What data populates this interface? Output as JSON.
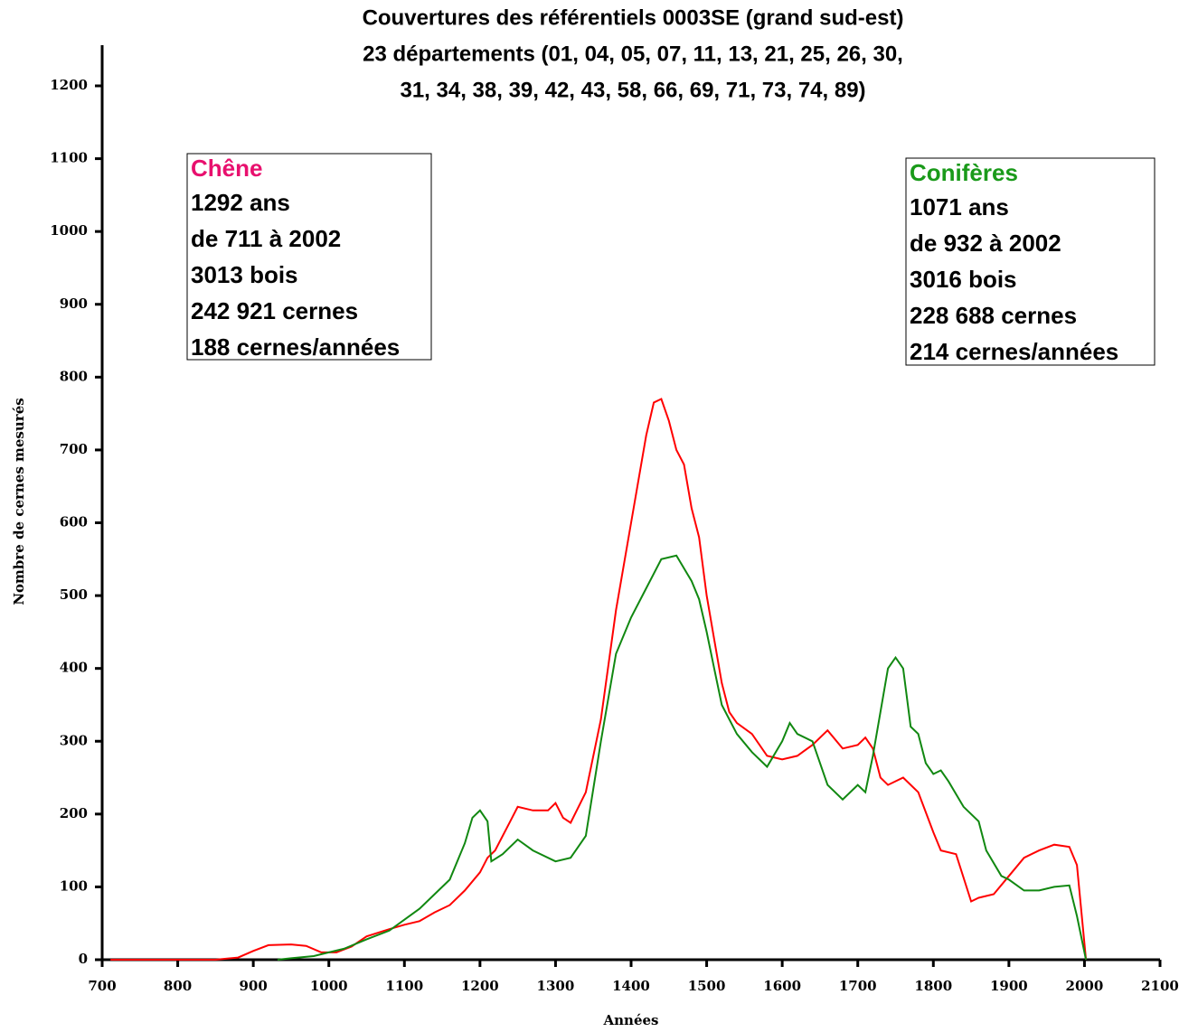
{
  "chart_data": {
    "type": "line",
    "title": [
      "Couvertures des référentiels 0003SE (grand sud-est)",
      "23 départements (01, 04, 05, 07, 11, 13, 21, 25, 26, 30,",
      "31, 34, 38, 39, 42, 43, 58, 66, 69, 71, 73, 74, 89)"
    ],
    "xlabel": "Années",
    "ylabel": "Nombre de cernes mesurés",
    "xlim": [
      700,
      2100
    ],
    "xticks": [
      700,
      800,
      900,
      1000,
      1100,
      1200,
      1300,
      1400,
      1500,
      1600,
      1700,
      1800,
      1900,
      2000,
      2100
    ],
    "ylim": [
      0,
      1200
    ],
    "yticks": [
      0,
      100,
      200,
      300,
      400,
      500,
      600,
      700,
      800,
      900,
      1000,
      1100,
      1200
    ],
    "series": [
      {
        "name": "Chêne",
        "color": "#ff0000",
        "label_color": "#e8106e",
        "x": [
          711,
          850,
          880,
          900,
          920,
          950,
          970,
          990,
          1010,
          1030,
          1050,
          1080,
          1100,
          1120,
          1140,
          1160,
          1180,
          1200,
          1210,
          1220,
          1240,
          1250,
          1270,
          1290,
          1300,
          1310,
          1320,
          1340,
          1360,
          1380,
          1400,
          1420,
          1430,
          1440,
          1450,
          1460,
          1470,
          1480,
          1490,
          1500,
          1510,
          1520,
          1530,
          1540,
          1560,
          1580,
          1600,
          1620,
          1640,
          1660,
          1680,
          1700,
          1710,
          1720,
          1730,
          1740,
          1760,
          1780,
          1800,
          1810,
          1830,
          1850,
          1860,
          1880,
          1900,
          1920,
          1940,
          1960,
          1980,
          1990,
          2002
        ],
        "values": [
          0,
          0,
          3,
          12,
          20,
          21,
          19,
          10,
          10,
          18,
          32,
          42,
          48,
          53,
          65,
          75,
          95,
          120,
          140,
          150,
          190,
          210,
          205,
          205,
          215,
          195,
          188,
          230,
          330,
          480,
          600,
          720,
          765,
          770,
          740,
          700,
          680,
          620,
          580,
          500,
          440,
          380,
          340,
          325,
          310,
          280,
          275,
          280,
          295,
          315,
          290,
          295,
          305,
          290,
          250,
          240,
          250,
          230,
          175,
          150,
          145,
          80,
          85,
          90,
          115,
          140,
          150,
          158,
          155,
          130,
          0
        ]
      },
      {
        "name": "Conifères",
        "color": "#118811",
        "label_color": "#1a9a1a",
        "x": [
          932,
          950,
          980,
          1000,
          1020,
          1050,
          1080,
          1100,
          1120,
          1140,
          1160,
          1180,
          1190,
          1200,
          1210,
          1215,
          1230,
          1250,
          1270,
          1300,
          1320,
          1340,
          1360,
          1380,
          1400,
          1420,
          1440,
          1460,
          1480,
          1490,
          1500,
          1510,
          1520,
          1540,
          1560,
          1580,
          1600,
          1610,
          1620,
          1640,
          1660,
          1680,
          1700,
          1710,
          1720,
          1740,
          1750,
          1760,
          1770,
          1780,
          1790,
          1800,
          1810,
          1820,
          1840,
          1860,
          1870,
          1890,
          1900,
          1920,
          1940,
          1960,
          1980,
          1990,
          2002
        ],
        "values": [
          0,
          2,
          5,
          10,
          15,
          28,
          40,
          55,
          70,
          90,
          110,
          160,
          195,
          205,
          190,
          135,
          145,
          165,
          150,
          135,
          140,
          170,
          300,
          420,
          470,
          510,
          550,
          555,
          520,
          495,
          450,
          400,
          350,
          310,
          285,
          265,
          300,
          325,
          310,
          300,
          240,
          220,
          240,
          230,
          280,
          400,
          415,
          400,
          320,
          310,
          270,
          255,
          260,
          245,
          210,
          190,
          150,
          115,
          110,
          95,
          95,
          100,
          102,
          60,
          0
        ]
      }
    ],
    "boxes": [
      {
        "lines": [
          "1292 ans",
          "de 711 à 2002",
          "3013 bois",
          "242 921 cernes",
          "188 cernes/années"
        ]
      },
      {
        "lines": [
          "1071 ans",
          "de 932 à 2002",
          "3016 bois",
          "228 688 cernes",
          "214 cernes/années"
        ]
      }
    ]
  }
}
